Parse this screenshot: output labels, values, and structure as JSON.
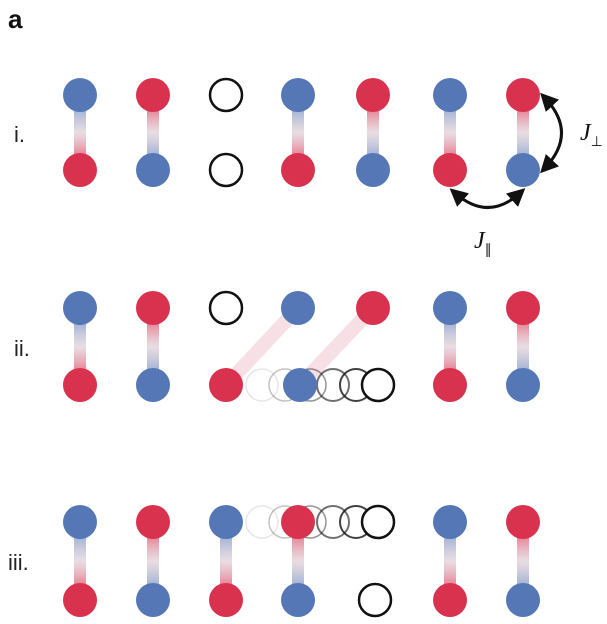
{
  "panel_label": "a",
  "rows": [
    {
      "label": "i."
    },
    {
      "label": "ii."
    },
    {
      "label": "iii."
    }
  ],
  "couplings": [
    {
      "symbol": "J",
      "subscript": "⊥"
    },
    {
      "symbol": "J",
      "subscript": "∥"
    }
  ]
}
